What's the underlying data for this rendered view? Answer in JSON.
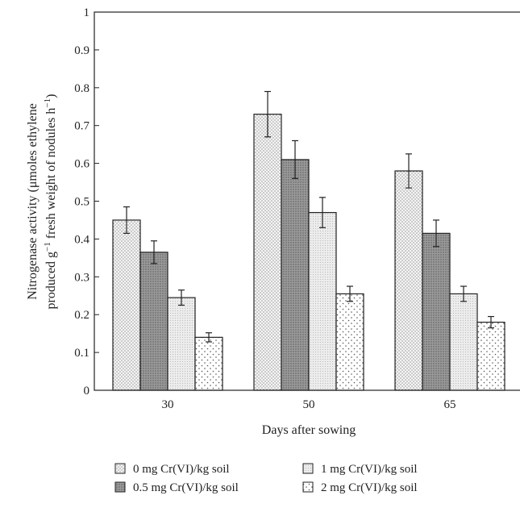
{
  "chart_data": {
    "type": "bar",
    "xlabel": "Days after sowing",
    "ylabel_line1": "Nitrogenase activity (μmoles ethylene",
    "ylabel_line2_prefix": "produced g",
    "ylabel_line2_sup1": "−1",
    "ylabel_line2_mid": " fresh weight of nodules h",
    "ylabel_line2_sup2": "−1",
    "ylabel_line2_suffix": ")",
    "categories": [
      "30",
      "50",
      "65"
    ],
    "ylim": [
      0,
      1
    ],
    "yticks": [
      "0",
      "0.1",
      "0.2",
      "0.3",
      "0.4",
      "0.5",
      "0.6",
      "0.7",
      "0.8",
      "0.9",
      "1"
    ],
    "series": [
      {
        "name": "0 mg Cr(VI)/kg soil",
        "values": [
          0.45,
          0.73,
          0.58
        ],
        "errors": [
          0.035,
          0.06,
          0.045
        ],
        "pattern": "dots-fine"
      },
      {
        "name": "0.5 mg Cr(VI)/kg soil",
        "values": [
          0.365,
          0.61,
          0.415
        ],
        "errors": [
          0.03,
          0.05,
          0.035
        ],
        "pattern": "dense"
      },
      {
        "name": "1 mg Cr(VI)/kg soil",
        "values": [
          0.245,
          0.47,
          0.255
        ],
        "errors": [
          0.02,
          0.04,
          0.02
        ],
        "pattern": "light"
      },
      {
        "name": "2 mg Cr(VI)/kg soil",
        "values": [
          0.14,
          0.255,
          0.18
        ],
        "errors": [
          0.012,
          0.02,
          0.015
        ],
        "pattern": "dots-sparse"
      }
    ],
    "legend_placement": "bottom",
    "grid": false
  }
}
